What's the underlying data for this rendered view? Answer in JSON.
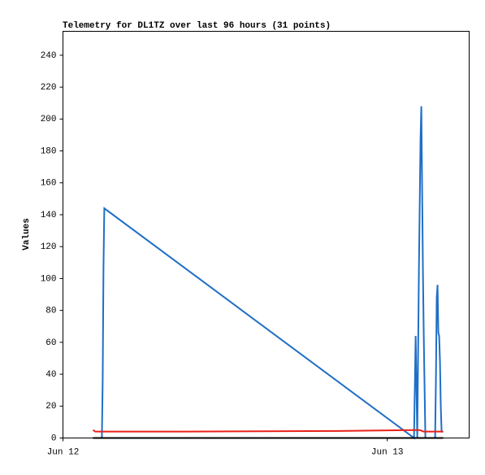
{
  "chart_data": {
    "type": "line",
    "title": "Telemetry for DL1TZ over last 96 hours (31 points)",
    "y_label": "Values",
    "xlim": [
      0,
      30.06
    ],
    "xticks": [
      {
        "value": 0,
        "label": "Jun 12"
      },
      {
        "value": 24,
        "label": "Jun 13"
      }
    ],
    "ylim": [
      0,
      255
    ],
    "yticks": [
      0,
      20,
      40,
      60,
      80,
      100,
      120,
      140,
      160,
      180,
      200,
      220,
      240
    ],
    "series": [
      {
        "color": "#1f6fc6",
        "x": [
          2.22,
          2.88,
          2.94,
          3.0,
          3.06,
          25.98,
          26.1,
          26.22,
          26.34,
          26.4,
          26.46,
          26.52,
          26.64,
          26.7,
          26.82,
          27.54,
          27.6,
          27.66,
          27.72,
          27.78,
          27.84,
          27.9,
          27.96,
          28.02,
          28.14
        ],
        "values": [
          0,
          0,
          36,
          108,
          144,
          0,
          64,
          0,
          104,
          146,
          187,
          208,
          104,
          64,
          0,
          0,
          36,
          88,
          96,
          66,
          64,
          48,
          20,
          4,
          4
        ]
      },
      {
        "color": "#e8201a",
        "x": [
          2.22,
          2.4,
          8.88,
          20.4,
          26.4,
          26.7,
          28.14
        ],
        "values": [
          5,
          4,
          4,
          4.4,
          5,
          4,
          4
        ]
      },
      {
        "color": "#000000",
        "x": [
          2.22,
          28.14
        ],
        "values": [
          0,
          0
        ]
      }
    ]
  }
}
